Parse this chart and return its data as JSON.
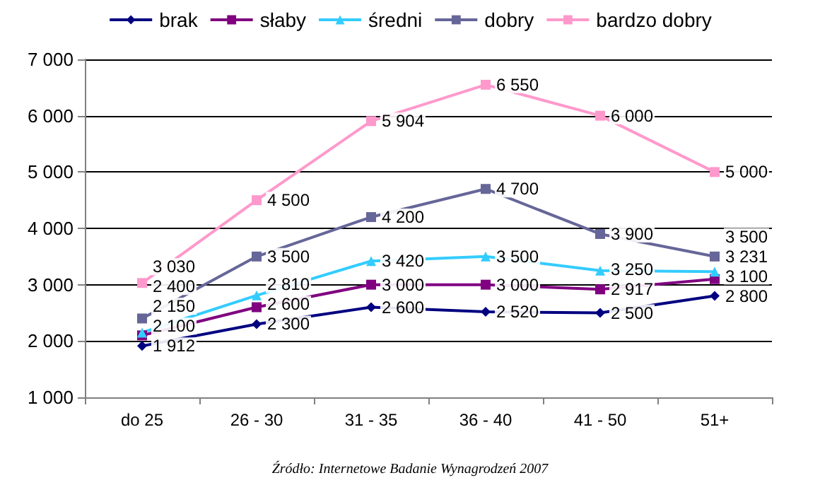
{
  "chart_data": {
    "type": "line",
    "categories": [
      "do 25",
      "26 - 30",
      "31 - 35",
      "36 - 40",
      "41 - 50",
      "51+"
    ],
    "series": [
      {
        "name": "brak",
        "color": "#000080",
        "marker": "diamond",
        "values": [
          1912,
          2300,
          2600,
          2520,
          2500,
          2800
        ],
        "value_labels": [
          "1 912",
          "2 300",
          "2 600",
          "2 520",
          "2 500",
          "2 800"
        ]
      },
      {
        "name": "słaby",
        "color": "#800080",
        "marker": "square",
        "values": [
          2100,
          2600,
          3000,
          3000,
          2917,
          3100
        ],
        "value_labels": [
          "2 100",
          "2 600",
          "3 000",
          "3 000",
          "2 917",
          "3 100"
        ]
      },
      {
        "name": "średni",
        "color": "#33ccff",
        "marker": "triangle",
        "values": [
          2150,
          2810,
          3420,
          3500,
          3250,
          3231
        ],
        "value_labels": [
          "2 150",
          "2 810",
          "3 420",
          "3 500",
          "3 250",
          "3 231"
        ]
      },
      {
        "name": "dobry",
        "color": "#666699",
        "marker": "square",
        "values": [
          2400,
          3500,
          4200,
          4700,
          3900,
          3500
        ],
        "value_labels": [
          "2 400",
          "3 500",
          "4 200",
          "4 700",
          "3 900",
          "3 500"
        ]
      },
      {
        "name": "bardzo dobry",
        "color": "#ff99cc",
        "marker": "square",
        "values": [
          3030,
          4500,
          5904,
          6550,
          6000,
          5000
        ],
        "value_labels": [
          "3 030",
          "4 500",
          "5 904",
          "6 550",
          "6 000",
          "5 000"
        ]
      }
    ],
    "ylim": [
      1000,
      7000
    ],
    "yticks": [
      {
        "value": 1000,
        "label": "1 000"
      },
      {
        "value": 2000,
        "label": "2 000"
      },
      {
        "value": 3000,
        "label": "3 000"
      },
      {
        "value": 4000,
        "label": "4 000"
      },
      {
        "value": 5000,
        "label": "5 000"
      },
      {
        "value": 6000,
        "label": "6 000"
      },
      {
        "value": 7000,
        "label": "7 000"
      }
    ],
    "grid": "y",
    "legend": "top",
    "line_style": "solid",
    "annotations": [
      "Źródło: Internetowe Badanie Wynagrodzeń 2007"
    ]
  }
}
